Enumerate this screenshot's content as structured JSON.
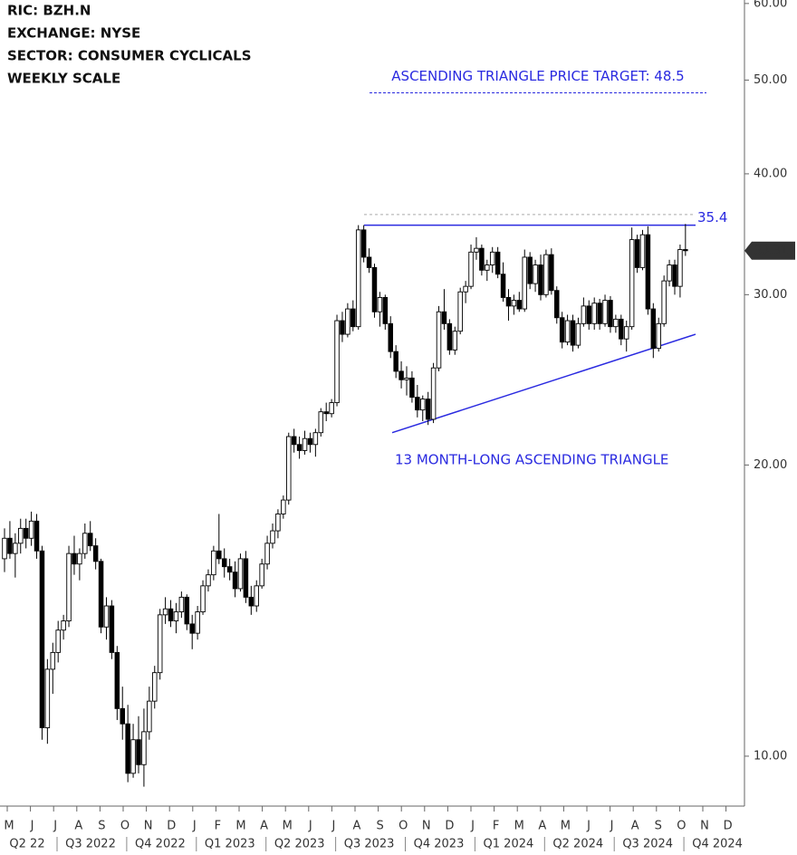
{
  "chart_data": {
    "type": "candlestick",
    "info": [
      "RIC:  BZH.N",
      "EXCHANGE: NYSE",
      "SECTOR:  CONSUMER CYCLICALS",
      "WEEKLY SCALE"
    ],
    "log_scale": true,
    "ylim": [
      8.88,
      60.5
    ],
    "yticks": [
      {
        "value": 10,
        "label": "10.00"
      },
      {
        "value": 20,
        "label": "20.00"
      },
      {
        "value": 30,
        "label": "30.00"
      },
      {
        "value": 40,
        "label": "40.00"
      },
      {
        "value": 50,
        "label": "50.00"
      },
      {
        "value": 60,
        "label": "60.00"
      }
    ],
    "months": [
      "M",
      "J",
      "J",
      "A",
      "S",
      "O",
      "N",
      "D",
      "J",
      "F",
      "M",
      "A",
      "M",
      "J",
      "J",
      "A",
      "S",
      "O",
      "N",
      "D",
      "J",
      "F",
      "M",
      "A",
      "M",
      "J",
      "J",
      "A",
      "S",
      "O",
      "N",
      "D"
    ],
    "quarters": [
      "Q2 22",
      "Q3 2022",
      "Q4 2022",
      "Q1 2023",
      "Q2 2023",
      "Q3 2023",
      "Q4 2023",
      "Q1 2024",
      "Q2 2024",
      "Q3 2024",
      "Q4 2024"
    ],
    "up_color": "#ffffff",
    "down_color": "#000000",
    "ohlc": [
      [
        16.0,
        17.2,
        15.5,
        16.8
      ],
      [
        16.8,
        17.5,
        16.0,
        16.2
      ],
      [
        16.2,
        17.0,
        15.3,
        16.6
      ],
      [
        16.6,
        17.6,
        16.2,
        17.2
      ],
      [
        17.2,
        17.6,
        16.4,
        16.8
      ],
      [
        16.8,
        17.9,
        16.5,
        17.5
      ],
      [
        17.5,
        17.8,
        16.0,
        16.3
      ],
      [
        16.3,
        16.5,
        10.4,
        10.7
      ],
      [
        10.7,
        12.6,
        10.3,
        12.3
      ],
      [
        12.3,
        13.1,
        11.6,
        12.8
      ],
      [
        12.8,
        13.8,
        12.5,
        13.5
      ],
      [
        13.5,
        14.0,
        13.2,
        13.8
      ],
      [
        13.8,
        16.5,
        13.6,
        16.2
      ],
      [
        16.2,
        16.9,
        15.4,
        15.8
      ],
      [
        15.8,
        16.4,
        15.2,
        16.2
      ],
      [
        16.2,
        17.4,
        16.0,
        17.0
      ],
      [
        17.0,
        17.5,
        16.3,
        16.5
      ],
      [
        16.5,
        16.8,
        15.6,
        15.9
      ],
      [
        15.9,
        16.0,
        13.4,
        13.6
      ],
      [
        13.6,
        14.6,
        13.2,
        14.3
      ],
      [
        14.3,
        14.5,
        12.6,
        12.8
      ],
      [
        12.8,
        13.0,
        10.9,
        11.2
      ],
      [
        11.2,
        11.8,
        10.4,
        10.8
      ],
      [
        10.8,
        11.3,
        9.4,
        9.6
      ],
      [
        9.6,
        10.8,
        9.5,
        10.4
      ],
      [
        10.4,
        11.0,
        9.6,
        9.8
      ],
      [
        9.8,
        11.2,
        9.3,
        10.6
      ],
      [
        10.6,
        11.8,
        10.4,
        11.4
      ],
      [
        11.4,
        12.4,
        11.2,
        12.2
      ],
      [
        12.2,
        14.2,
        12.0,
        14.0
      ],
      [
        14.0,
        14.6,
        13.7,
        14.2
      ],
      [
        14.2,
        14.5,
        13.6,
        13.8
      ],
      [
        13.8,
        14.4,
        13.4,
        14.1
      ],
      [
        14.1,
        14.8,
        13.9,
        14.6
      ],
      [
        14.6,
        14.7,
        13.5,
        13.7
      ],
      [
        13.7,
        14.0,
        12.9,
        13.4
      ],
      [
        13.4,
        14.3,
        13.2,
        14.1
      ],
      [
        14.1,
        15.2,
        14.0,
        15.0
      ],
      [
        15.0,
        15.6,
        14.8,
        15.4
      ],
      [
        15.4,
        16.5,
        15.2,
        16.3
      ],
      [
        16.3,
        17.8,
        15.8,
        16.0
      ],
      [
        16.0,
        16.4,
        15.3,
        15.7
      ],
      [
        15.7,
        16.0,
        15.2,
        15.5
      ],
      [
        15.5,
        15.9,
        14.6,
        14.9
      ],
      [
        14.9,
        16.2,
        14.8,
        16.0
      ],
      [
        16.0,
        16.3,
        14.4,
        14.6
      ],
      [
        14.6,
        15.0,
        14.0,
        14.3
      ],
      [
        14.3,
        15.2,
        14.1,
        15.0
      ],
      [
        15.0,
        16.0,
        14.9,
        15.8
      ],
      [
        15.8,
        16.9,
        15.6,
        16.6
      ],
      [
        16.6,
        17.4,
        16.4,
        17.1
      ],
      [
        17.1,
        18.0,
        16.8,
        17.8
      ],
      [
        17.8,
        18.6,
        17.6,
        18.4
      ],
      [
        18.4,
        21.6,
        18.2,
        21.4
      ],
      [
        21.4,
        21.8,
        20.6,
        21.0
      ],
      [
        21.0,
        21.4,
        20.3,
        20.7
      ],
      [
        20.7,
        21.7,
        20.5,
        21.3
      ],
      [
        21.3,
        21.6,
        20.6,
        21.0
      ],
      [
        21.0,
        21.8,
        20.4,
        21.6
      ],
      [
        21.6,
        22.9,
        21.4,
        22.7
      ],
      [
        22.7,
        23.2,
        22.2,
        22.6
      ],
      [
        22.6,
        23.4,
        22.4,
        23.2
      ],
      [
        23.2,
        28.6,
        23.0,
        28.2
      ],
      [
        28.2,
        28.8,
        26.8,
        27.3
      ],
      [
        27.3,
        29.4,
        27.1,
        29.0
      ],
      [
        29.0,
        29.6,
        27.5,
        27.8
      ],
      [
        27.8,
        35.4,
        27.6,
        35.0
      ],
      [
        35.0,
        35.4,
        32.4,
        32.8
      ],
      [
        32.8,
        33.5,
        31.6,
        32.0
      ],
      [
        32.0,
        32.3,
        28.4,
        28.8
      ],
      [
        28.8,
        30.2,
        27.8,
        29.8
      ],
      [
        29.8,
        30.0,
        27.6,
        28.0
      ],
      [
        28.0,
        28.5,
        25.8,
        26.2
      ],
      [
        26.2,
        26.6,
        24.6,
        25.0
      ],
      [
        25.0,
        25.6,
        24.0,
        24.5
      ],
      [
        24.5,
        25.3,
        23.6,
        24.6
      ],
      [
        24.6,
        25.0,
        23.2,
        23.5
      ],
      [
        23.5,
        24.2,
        22.4,
        22.8
      ],
      [
        22.8,
        23.6,
        22.2,
        23.4
      ],
      [
        23.4,
        23.8,
        22.0,
        22.3
      ],
      [
        22.3,
        25.5,
        22.1,
        25.2
      ],
      [
        25.2,
        29.2,
        25.0,
        28.8
      ],
      [
        28.8,
        30.4,
        27.6,
        28.0
      ],
      [
        28.0,
        28.3,
        26.0,
        26.3
      ],
      [
        26.3,
        27.8,
        26.0,
        27.5
      ],
      [
        27.5,
        30.5,
        27.3,
        30.2
      ],
      [
        30.2,
        31.0,
        29.4,
        30.6
      ],
      [
        30.6,
        33.8,
        30.4,
        33.2
      ],
      [
        33.2,
        34.4,
        32.6,
        33.5
      ],
      [
        33.5,
        33.8,
        31.4,
        31.8
      ],
      [
        31.8,
        32.6,
        31.0,
        32.2
      ],
      [
        32.2,
        33.6,
        31.6,
        33.2
      ],
      [
        33.2,
        33.6,
        31.2,
        31.5
      ],
      [
        31.5,
        32.4,
        29.5,
        29.8
      ],
      [
        29.8,
        30.4,
        28.2,
        29.2
      ],
      [
        29.2,
        30.0,
        28.6,
        29.6
      ],
      [
        29.6,
        30.2,
        28.8,
        29.0
      ],
      [
        29.0,
        33.4,
        28.8,
        32.8
      ],
      [
        32.8,
        33.2,
        30.4,
        30.8
      ],
      [
        30.8,
        32.6,
        30.2,
        32.2
      ],
      [
        32.2,
        33.0,
        29.6,
        30.0
      ],
      [
        30.0,
        33.4,
        29.8,
        33.0
      ],
      [
        33.0,
        33.5,
        30.0,
        30.3
      ],
      [
        30.3,
        30.6,
        28.0,
        28.4
      ],
      [
        28.4,
        28.8,
        26.4,
        26.8
      ],
      [
        26.8,
        28.6,
        26.6,
        28.2
      ],
      [
        28.2,
        28.6,
        26.2,
        26.6
      ],
      [
        26.6,
        28.4,
        26.4,
        28.0
      ],
      [
        28.0,
        29.8,
        27.8,
        29.2
      ],
      [
        29.2,
        29.6,
        27.6,
        28.0
      ],
      [
        28.0,
        29.8,
        27.6,
        29.4
      ],
      [
        29.4,
        29.7,
        27.6,
        28.0
      ],
      [
        28.0,
        30.0,
        27.8,
        29.6
      ],
      [
        29.6,
        29.9,
        27.4,
        27.8
      ],
      [
        27.8,
        28.6,
        27.4,
        28.3
      ],
      [
        28.3,
        28.6,
        26.6,
        27.0
      ],
      [
        27.0,
        28.2,
        26.2,
        27.8
      ],
      [
        27.8,
        35.2,
        27.6,
        34.2
      ],
      [
        34.2,
        34.6,
        31.6,
        32.0
      ],
      [
        32.0,
        35.0,
        31.8,
        34.6
      ],
      [
        34.6,
        35.3,
        28.6,
        29.0
      ],
      [
        29.0,
        29.4,
        25.8,
        26.4
      ],
      [
        26.4,
        28.4,
        26.2,
        28.0
      ],
      [
        28.0,
        31.4,
        27.8,
        31.0
      ],
      [
        31.0,
        32.6,
        30.6,
        32.2
      ],
      [
        32.2,
        32.6,
        30.0,
        30.6
      ],
      [
        30.6,
        33.8,
        29.8,
        33.4
      ],
      [
        33.4,
        35.5,
        32.9,
        33.31
      ]
    ],
    "last_price": 33.31,
    "resistance": {
      "value": 35.4,
      "label": "35.4",
      "color": "#2a2ae0"
    },
    "reference_line": {
      "value": 36.3,
      "color": "#aaaaaa"
    },
    "support": {
      "values": [
        21.6,
        27.3
      ],
      "color": "#2a2ae0"
    },
    "target": {
      "value": 48.5,
      "label": "ASCENDING TRIANGLE PRICE TARGET: 48.5",
      "color": "#2a2ae0"
    },
    "pattern_label": "13 MONTH-LONG ASCENDING TRIANGLE"
  }
}
